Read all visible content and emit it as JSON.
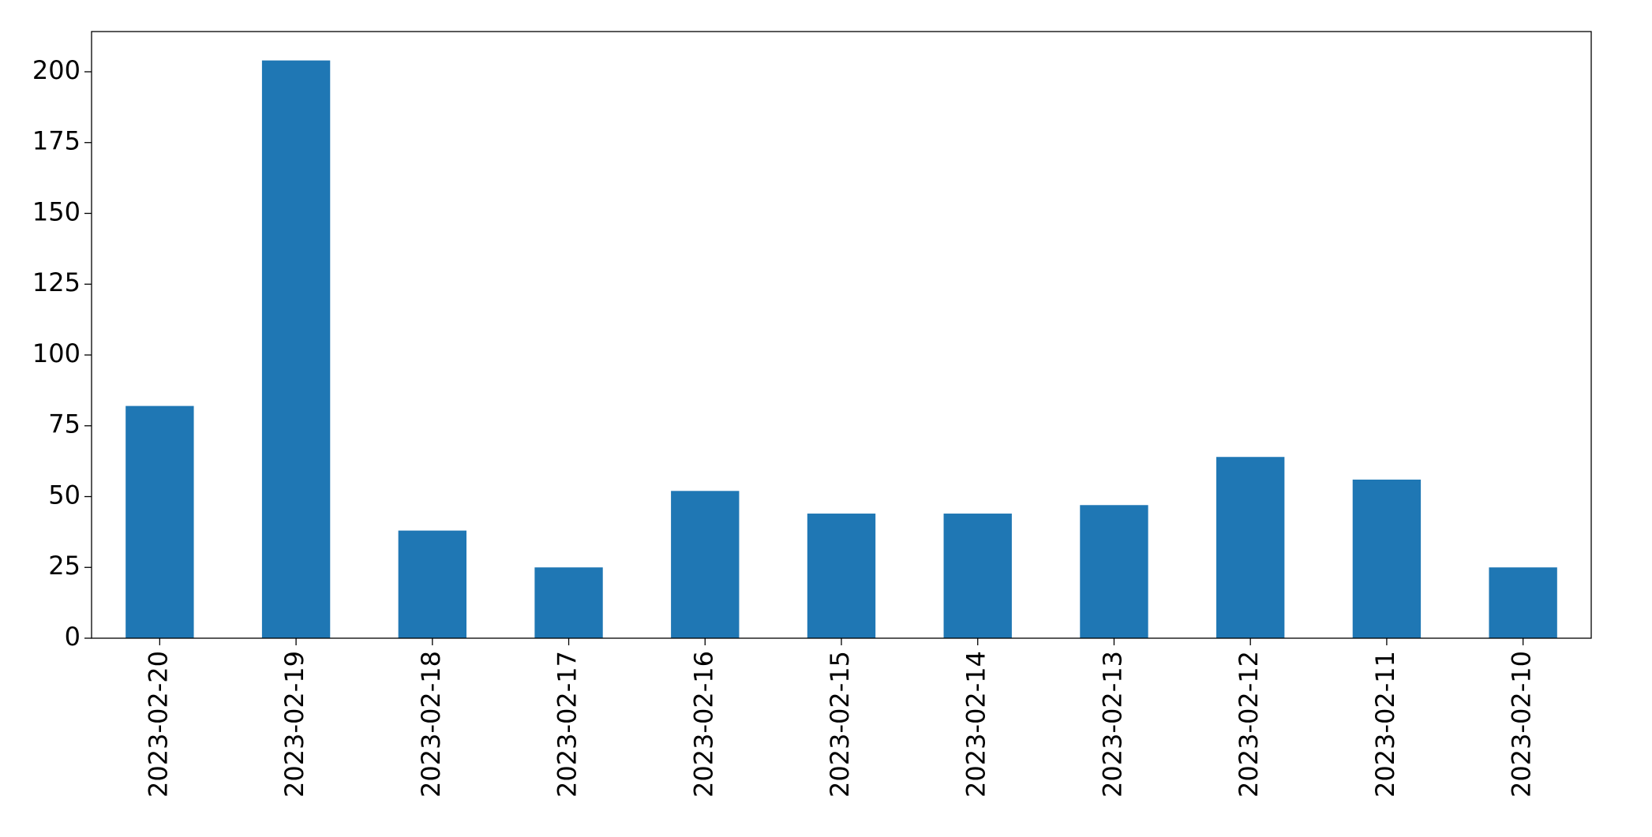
{
  "chart_data": {
    "type": "bar",
    "categories": [
      "2023-02-20",
      "2023-02-19",
      "2023-02-18",
      "2023-02-17",
      "2023-02-16",
      "2023-02-15",
      "2023-02-14",
      "2023-02-13",
      "2023-02-12",
      "2023-02-11",
      "2023-02-10"
    ],
    "values": [
      82,
      204,
      38,
      25,
      52,
      44,
      44,
      47,
      64,
      56,
      25
    ],
    "color": "#1f77b4",
    "ylim": [
      0,
      214.2
    ],
    "yticks": [
      0,
      25,
      50,
      75,
      100,
      125,
      150,
      175,
      200
    ],
    "grid": false
  }
}
